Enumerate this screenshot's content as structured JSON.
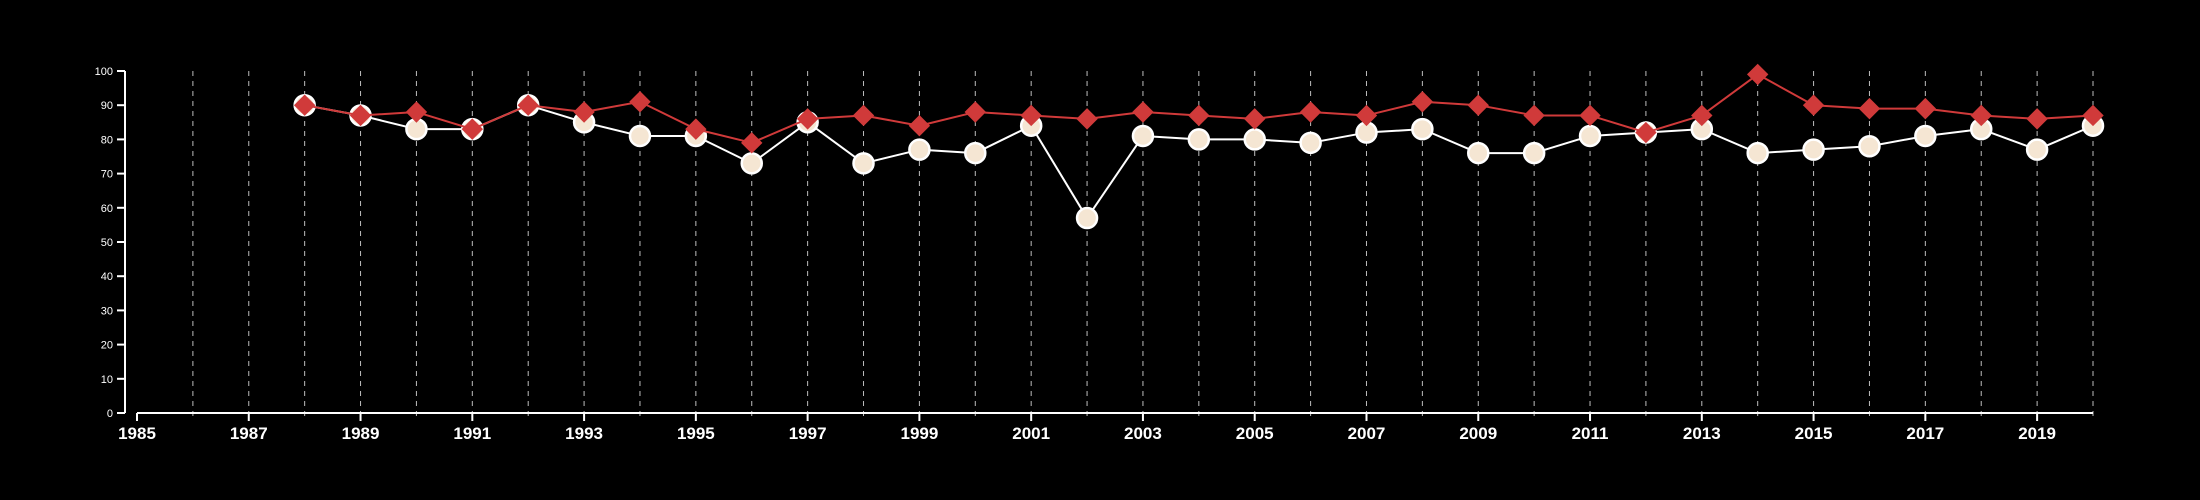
{
  "chart_data": {
    "type": "line",
    "title": "",
    "xlabel": "",
    "ylabel": "",
    "xlim": [
      1985,
      2020
    ],
    "ylim": [
      0,
      100
    ],
    "x_ticks": [
      "1985",
      "1987",
      "1989",
      "1991",
      "1993",
      "1995",
      "1997",
      "1999",
      "2001",
      "2003",
      "2005",
      "2007",
      "2009",
      "2011",
      "2013",
      "2015",
      "2017",
      "2019"
    ],
    "y_ticks": [
      "0",
      "10",
      "20",
      "30",
      "40",
      "50",
      "60",
      "70",
      "80",
      "90",
      "100"
    ],
    "vertical_gridlines": "dashed, every year",
    "x": [
      1988,
      1989,
      1990,
      1991,
      1992,
      1993,
      1994,
      1995,
      1996,
      1997,
      1998,
      1999,
      2000,
      2001,
      2002,
      2003,
      2004,
      2005,
      2006,
      2007,
      2008,
      2009,
      2010,
      2011,
      2012,
      2013,
      2014,
      2015,
      2016,
      2017,
      2018,
      2019,
      2020
    ],
    "series": [
      {
        "marker": "circle",
        "color": "#ffffff",
        "fill": "#f5e6d3",
        "values": [
          90,
          87,
          83,
          83,
          90,
          85,
          81,
          81,
          73,
          85,
          73,
          77,
          76,
          84,
          57,
          81,
          80,
          80,
          79,
          82,
          83,
          76,
          76,
          81,
          82,
          83,
          76,
          77,
          78,
          81,
          83,
          77,
          84
        ]
      },
      {
        "marker": "diamond",
        "color": "#d03a3a",
        "values": [
          90,
          87,
          88,
          83,
          90,
          88,
          91,
          83,
          79,
          86,
          87,
          84,
          88,
          87,
          86,
          88,
          87,
          86,
          88,
          87,
          91,
          90,
          87,
          87,
          82,
          87,
          99,
          90,
          89,
          89,
          87,
          86,
          87
        ]
      }
    ]
  }
}
